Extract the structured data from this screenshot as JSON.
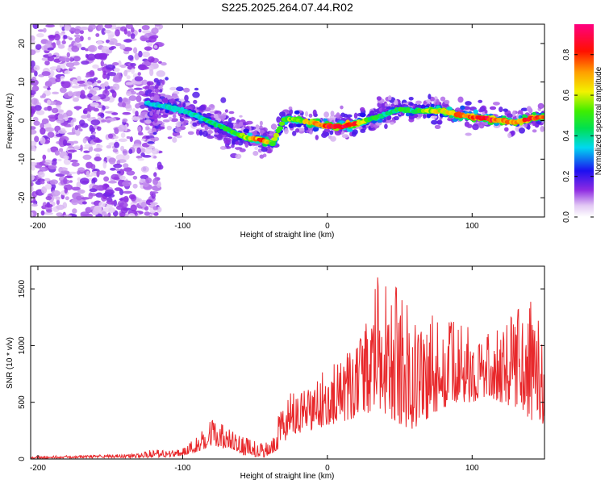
{
  "title": "S225.2025.264.07.44.R02",
  "chart_data": [
    {
      "type": "heatmap",
      "xlabel": "Height of straight line (km)",
      "ylabel": "Frequency (Hz)",
      "xlim": [
        -205,
        150
      ],
      "ylim": [
        -25,
        25
      ],
      "xticks": [
        -200,
        -100,
        0,
        100
      ],
      "yticks": [
        -20,
        -10,
        0,
        10,
        20
      ],
      "ridge": {
        "x": [
          -125,
          -110,
          -95,
          -80,
          -65,
          -55,
          -45,
          -38,
          -30,
          -20,
          -10,
          0,
          10,
          20,
          30,
          40,
          50,
          60,
          70,
          80,
          90,
          100,
          110,
          120,
          130,
          140,
          150
        ],
        "freq": [
          4.5,
          3.5,
          2,
          -0.5,
          -3,
          -4.5,
          -5,
          -6,
          0.5,
          0.2,
          -0.5,
          -1.5,
          -1.5,
          -0.8,
          0.5,
          1.5,
          3,
          2.5,
          2.5,
          2.5,
          1.5,
          1,
          0.5,
          0,
          -0.5,
          0.5,
          1
        ],
        "peak_amplitude": [
          0.35,
          0.4,
          0.4,
          0.45,
          0.5,
          0.6,
          0.85,
          0.6,
          0.55,
          0.6,
          0.7,
          0.9,
          0.95,
          0.85,
          0.5,
          0.45,
          0.5,
          0.45,
          0.6,
          0.7,
          0.75,
          0.85,
          0.95,
          0.8,
          0.7,
          0.9,
          0.85
        ]
      },
      "colorbar": {
        "label": "Normalized spectral amplitude",
        "range": [
          0,
          0.95
        ],
        "ticks": [
          0,
          0.2,
          0.4,
          0.6,
          0.8
        ],
        "tick_labels": [
          "0.0",
          "0.2",
          "0.4",
          "0.6",
          "0.8"
        ]
      }
    },
    {
      "type": "line",
      "color": "#e8282b",
      "xlabel": "Height of straight line (km)",
      "ylabel": "SNR (10 * v/v)",
      "xlim": [
        -205,
        150
      ],
      "ylim": [
        0,
        1700
      ],
      "xticks": [
        -200,
        -100,
        0,
        100
      ],
      "yticks": [
        0,
        500,
        1000,
        1500
      ],
      "envelope": {
        "x": [
          -205,
          -190,
          -170,
          -150,
          -130,
          -120,
          -110,
          -100,
          -90,
          -80,
          -70,
          -60,
          -50,
          -45,
          -40,
          -35,
          -30,
          -25,
          -20,
          -10,
          0,
          10,
          20,
          30,
          35,
          40,
          50,
          60,
          70,
          80,
          90,
          100,
          110,
          120,
          130,
          140,
          150
        ],
        "low": [
          5,
          5,
          8,
          10,
          10,
          12,
          15,
          30,
          60,
          120,
          80,
          40,
          20,
          15,
          20,
          80,
          150,
          200,
          220,
          250,
          300,
          320,
          350,
          420,
          450,
          400,
          300,
          250,
          350,
          450,
          500,
          500,
          550,
          500,
          450,
          350,
          300
        ],
        "high": [
          25,
          30,
          30,
          40,
          45,
          90,
          70,
          110,
          200,
          370,
          290,
          200,
          160,
          140,
          150,
          380,
          550,
          600,
          550,
          700,
          800,
          900,
          1000,
          1300,
          1650,
          1550,
          1500,
          1400,
          1350,
          1250,
          1200,
          1150,
          1100,
          1150,
          1300,
          1400,
          1550
        ]
      }
    }
  ]
}
